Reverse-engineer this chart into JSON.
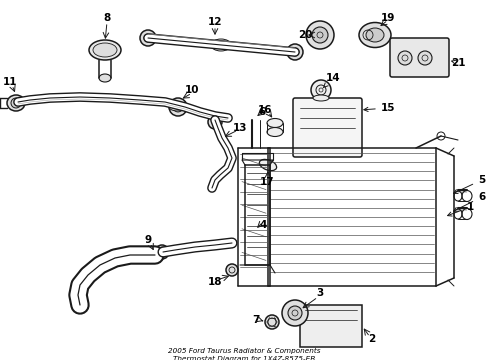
{
  "title": "2005 Ford Taurus Radiator & Components\nThermostat Diagram for 1X4Z-8575-EB",
  "bg_color": "#ffffff",
  "lc": "#1a1a1a",
  "fig_width": 4.89,
  "fig_height": 3.6,
  "dpi": 100
}
